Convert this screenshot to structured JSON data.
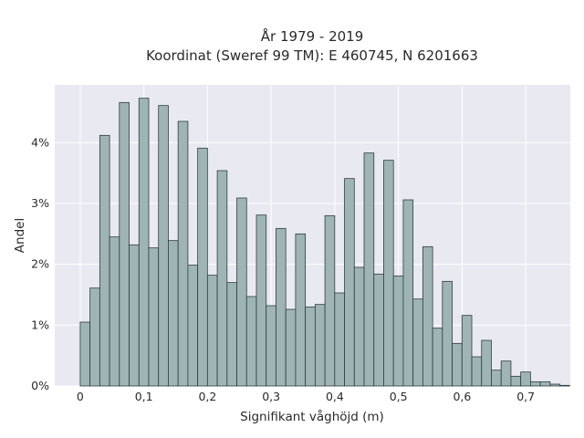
{
  "chart_data": {
    "type": "bar",
    "title": "År 1979 - 2019",
    "subtitle": "Koordinat (Sweref 99 TM): E 460745, N 6201663",
    "xlabel": "Signifikant våghöjd (m)",
    "ylabel": "Andel",
    "xlim": [
      -0.04,
      0.77
    ],
    "ylim": [
      0,
      4.95
    ],
    "x_ticks": [
      0,
      0.1,
      0.2,
      0.3,
      0.4,
      0.5,
      0.6,
      0.7
    ],
    "x_tick_labels": [
      "0",
      "0,1",
      "0,2",
      "0,3",
      "0,4",
      "0,5",
      "0,6",
      "0,7"
    ],
    "y_ticks": [
      0,
      1,
      2,
      3,
      4
    ],
    "y_tick_labels": [
      "0%",
      "1%",
      "2%",
      "3%",
      "4%"
    ],
    "y_unit": "percent",
    "bin_width": 0.01538,
    "bin_start": 0,
    "values": [
      1.05,
      1.61,
      4.12,
      2.45,
      4.66,
      2.32,
      4.73,
      2.27,
      4.61,
      2.39,
      4.35,
      1.99,
      3.91,
      1.82,
      3.54,
      1.7,
      3.09,
      1.47,
      2.81,
      1.32,
      2.59,
      1.26,
      2.5,
      1.3,
      1.34,
      2.8,
      1.53,
      3.41,
      1.95,
      3.83,
      1.84,
      3.71,
      1.81,
      3.06,
      1.43,
      2.29,
      0.95,
      1.72,
      0.7,
      1.16,
      0.48,
      0.75,
      0.26,
      0.41,
      0.16,
      0.23,
      0.07,
      0.07,
      0.03,
      0.01
    ],
    "grid": true,
    "legend": "none",
    "colors": {
      "bar_fill": "#9fb5b5",
      "bar_stroke": "#2f3d3d",
      "plot_bg": "#e9e9f2",
      "grid": "#ffffff"
    }
  }
}
